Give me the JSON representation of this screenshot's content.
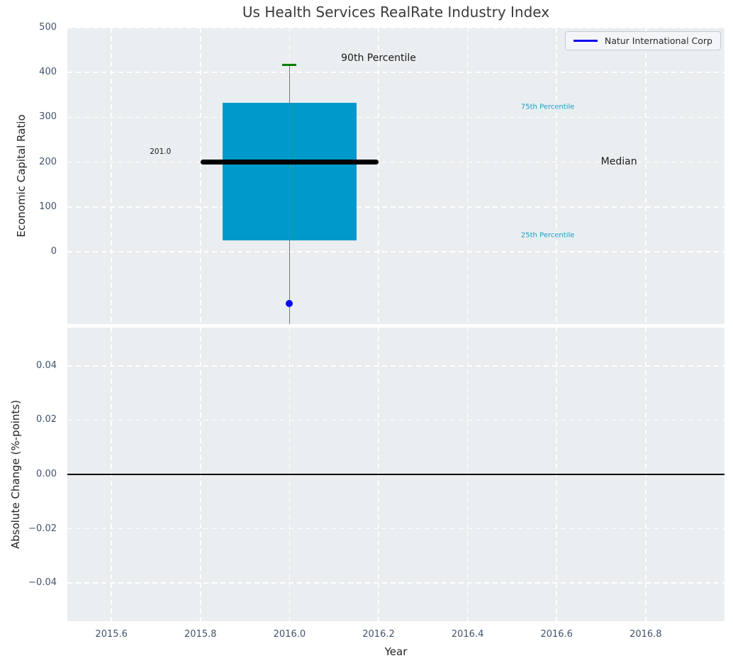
{
  "title": "Us Health Services RealRate Industry Index",
  "legend": {
    "label": "Natur International Corp",
    "line_color": "#0808f0",
    "position": "upper right"
  },
  "palette": {
    "figure_bg": "#ffffff",
    "axes_bg": "#eaeef0",
    "grid": "#ffffff",
    "box_fill": "#0099cc",
    "median_line": "#000000",
    "whisker": "#787878",
    "cap_90th": "#007d00",
    "company_point": "#0808f0",
    "tick_label": "#42526b",
    "title_color": "#3a3a3a",
    "axis_label": "#222222",
    "percentile_label": "#1f9ac8",
    "zero_line": "#000000"
  },
  "chart_data": [
    {
      "type": "box",
      "subplot": "top",
      "ylabel": "Economic Capital Ratio",
      "xlim": [
        2015.501,
        2016.977
      ],
      "ylim": [
        -161,
        500
      ],
      "yticks": [
        0,
        100,
        200,
        300,
        400,
        500
      ],
      "ytick_labels": [
        "0",
        "100",
        "200",
        "300",
        "400",
        "500"
      ],
      "xticks": [
        2015.6,
        2015.8,
        2016.0,
        2016.2,
        2016.4,
        2016.6,
        2016.8
      ],
      "grid": true,
      "box": {
        "x": 2016.0,
        "p90": 417,
        "p75": 333,
        "median": 201.0,
        "p25": 25,
        "whisker_low": "clipped below axis bottom",
        "box_x_extent": [
          2015.85,
          2016.15
        ],
        "median_x_extent": [
          2015.8,
          2016.2
        ],
        "median_label": "201.0",
        "cap_width_years": 0.032
      },
      "company_point": {
        "name": "Natur International Corp",
        "x": 2016.0,
        "y": -115
      },
      "annotations": [
        {
          "text": "90th Percentile",
          "x": 2016.2,
          "y": 432,
          "size": 14,
          "color": "#1a1a1a"
        },
        {
          "text": "75th Percentile",
          "x": 2016.58,
          "y": 323,
          "size": 10,
          "color": "#1f9ac8"
        },
        {
          "text": "Median",
          "x": 2016.74,
          "y": 201,
          "size": 14,
          "color": "#1a1a1a"
        },
        {
          "text": "25th Percentile",
          "x": 2016.58,
          "y": 37,
          "size": 10,
          "color": "#1f9ac8"
        },
        {
          "text": "201.0",
          "x": 2015.71,
          "y": 223,
          "size": 10.5,
          "color": "#1a1a1a"
        }
      ]
    },
    {
      "type": "line",
      "subplot": "bottom",
      "xlabel": "Year",
      "ylabel": "Absolute Change (%-points)",
      "xlim": [
        2015.501,
        2016.977
      ],
      "ylim": [
        -0.0541,
        0.0541
      ],
      "yticks": [
        -0.04,
        -0.02,
        0.0,
        0.02,
        0.04
      ],
      "ytick_labels": [
        "−0.04",
        "−0.02",
        "0.00",
        "0.02",
        "0.04"
      ],
      "xticks": [
        2015.6,
        2015.8,
        2016.0,
        2016.2,
        2016.4,
        2016.6,
        2016.8
      ],
      "xtick_labels": [
        "2015.6",
        "2015.8",
        "2016.0",
        "2016.2",
        "2016.4",
        "2016.6",
        "2016.8"
      ],
      "zero_line_y": 0.0,
      "series": [],
      "grid": true
    }
  ]
}
